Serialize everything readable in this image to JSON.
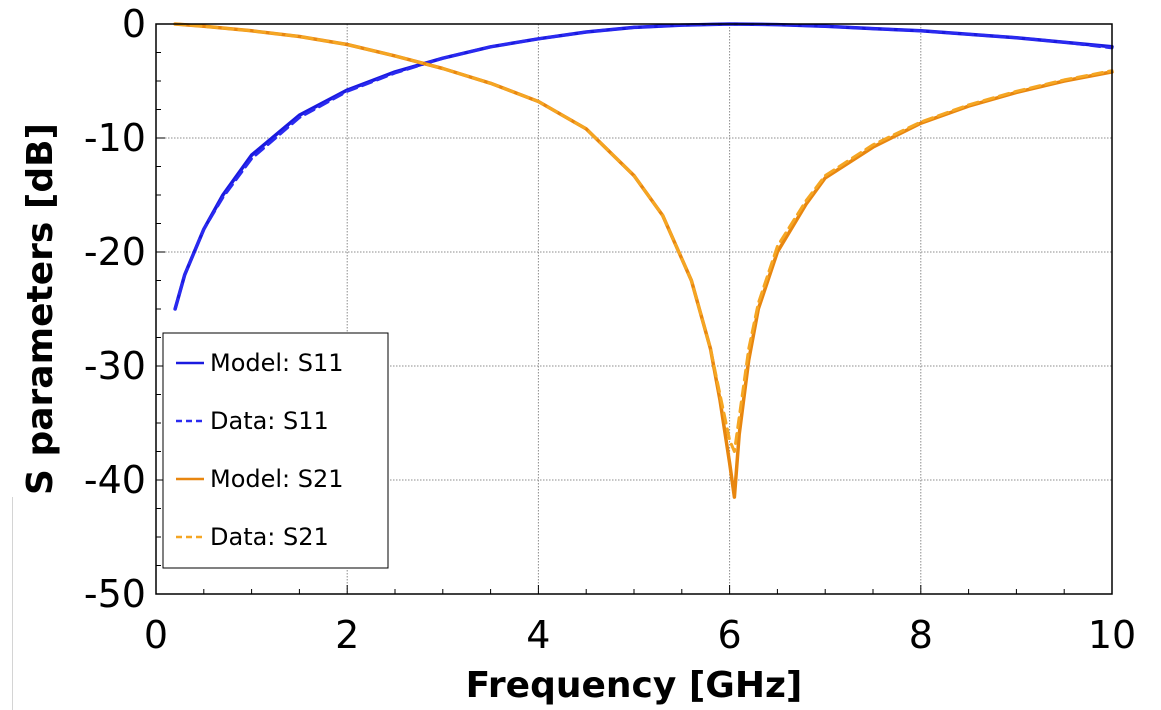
{
  "chart_data": {
    "type": "line",
    "title": "",
    "xlabel": "Frequency [GHz]",
    "ylabel": "S parameters [dB]",
    "xlim": [
      0,
      10
    ],
    "ylim": [
      -50,
      0
    ],
    "x_ticks": [
      0,
      2,
      4,
      6,
      8,
      10
    ],
    "y_ticks": [
      0,
      -10,
      -20,
      -30,
      -40,
      -50
    ],
    "x_tick_labels": [
      "0",
      "2",
      "4",
      "6",
      "8",
      "10"
    ],
    "y_tick_labels": [
      "0",
      "-10",
      "-20",
      "-30",
      "-40",
      "-50"
    ],
    "grid": true,
    "legend_position": "lower-left",
    "series": [
      {
        "name": "Model: S11",
        "color": "#1a1adf",
        "style": "solid",
        "x": [
          0.2,
          0.3,
          0.5,
          0.7,
          1.0,
          1.5,
          2.0,
          2.5,
          3.0,
          3.5,
          4.0,
          4.5,
          5.0,
          5.5,
          6.0,
          6.5,
          7.0,
          7.5,
          8.0,
          8.5,
          9.0,
          9.5,
          10.0
        ],
        "y": [
          -25,
          -22,
          -18,
          -15,
          -11.5,
          -8,
          -5.8,
          -4.2,
          -3.0,
          -2.0,
          -1.3,
          -0.7,
          -0.3,
          -0.1,
          0.0,
          -0.05,
          -0.2,
          -0.4,
          -0.6,
          -0.9,
          -1.2,
          -1.6,
          -2.0
        ]
      },
      {
        "name": "Data: S11",
        "color": "#2a2af0",
        "style": "dashed",
        "x": [
          0.2,
          0.3,
          0.5,
          0.7,
          1.0,
          1.5,
          2.0,
          2.5,
          3.0,
          3.5,
          4.0,
          4.5,
          5.0,
          5.5,
          6.0,
          6.5,
          7.0,
          7.5,
          8.0,
          8.5,
          9.0,
          9.5,
          10.0
        ],
        "y": [
          -25,
          -22,
          -18,
          -15.2,
          -11.8,
          -8.2,
          -5.9,
          -4.3,
          -3.0,
          -2.0,
          -1.3,
          -0.7,
          -0.3,
          -0.1,
          0.0,
          -0.05,
          -0.2,
          -0.4,
          -0.6,
          -0.9,
          -1.2,
          -1.6,
          -2.1
        ]
      },
      {
        "name": "Model: S21",
        "color": "#e8860f",
        "style": "solid",
        "x": [
          0.2,
          0.5,
          1.0,
          1.5,
          2.0,
          2.5,
          3.0,
          3.5,
          4.0,
          4.5,
          5.0,
          5.3,
          5.6,
          5.8,
          5.9,
          6.0,
          6.05,
          6.1,
          6.2,
          6.3,
          6.5,
          6.8,
          7.0,
          7.5,
          8.0,
          8.5,
          9.0,
          9.5,
          10.0
        ],
        "y": [
          0.0,
          -0.2,
          -0.6,
          -1.1,
          -1.8,
          -2.8,
          -3.9,
          -5.2,
          -6.8,
          -9.2,
          -13.3,
          -16.8,
          -22.5,
          -28.5,
          -33,
          -38.5,
          -41.5,
          -36,
          -29.5,
          -25,
          -20,
          -15.8,
          -13.5,
          -10.8,
          -8.7,
          -7.2,
          -6.0,
          -5.0,
          -4.2
        ]
      },
      {
        "name": "Data: S21",
        "color": "#f5a623",
        "style": "dashed",
        "x": [
          0.2,
          0.5,
          1.0,
          1.5,
          2.0,
          2.5,
          3.0,
          3.5,
          4.0,
          4.5,
          5.0,
          5.3,
          5.6,
          5.8,
          5.9,
          6.0,
          6.05,
          6.1,
          6.2,
          6.3,
          6.5,
          6.8,
          7.0,
          7.5,
          8.0,
          8.5,
          9.0,
          9.5,
          10.0
        ],
        "y": [
          0.0,
          -0.2,
          -0.6,
          -1.1,
          -1.8,
          -2.8,
          -3.9,
          -5.2,
          -6.8,
          -9.2,
          -13.3,
          -16.8,
          -22.5,
          -28.5,
          -32.5,
          -36.5,
          -37.5,
          -34.5,
          -28.5,
          -24.5,
          -19.5,
          -15.5,
          -13.3,
          -10.6,
          -8.6,
          -7.1,
          -5.9,
          -4.9,
          -4.1
        ]
      }
    ]
  },
  "legend": {
    "items": [
      {
        "label": "Model: S11",
        "color": "#1a1adf",
        "style": "solid"
      },
      {
        "label": "Data: S11",
        "color": "#2a2af0",
        "style": "dashed"
      },
      {
        "label": "Model: S21",
        "color": "#e8860f",
        "style": "solid"
      },
      {
        "label": "Data: S21",
        "color": "#f5a623",
        "style": "dashed"
      }
    ]
  }
}
